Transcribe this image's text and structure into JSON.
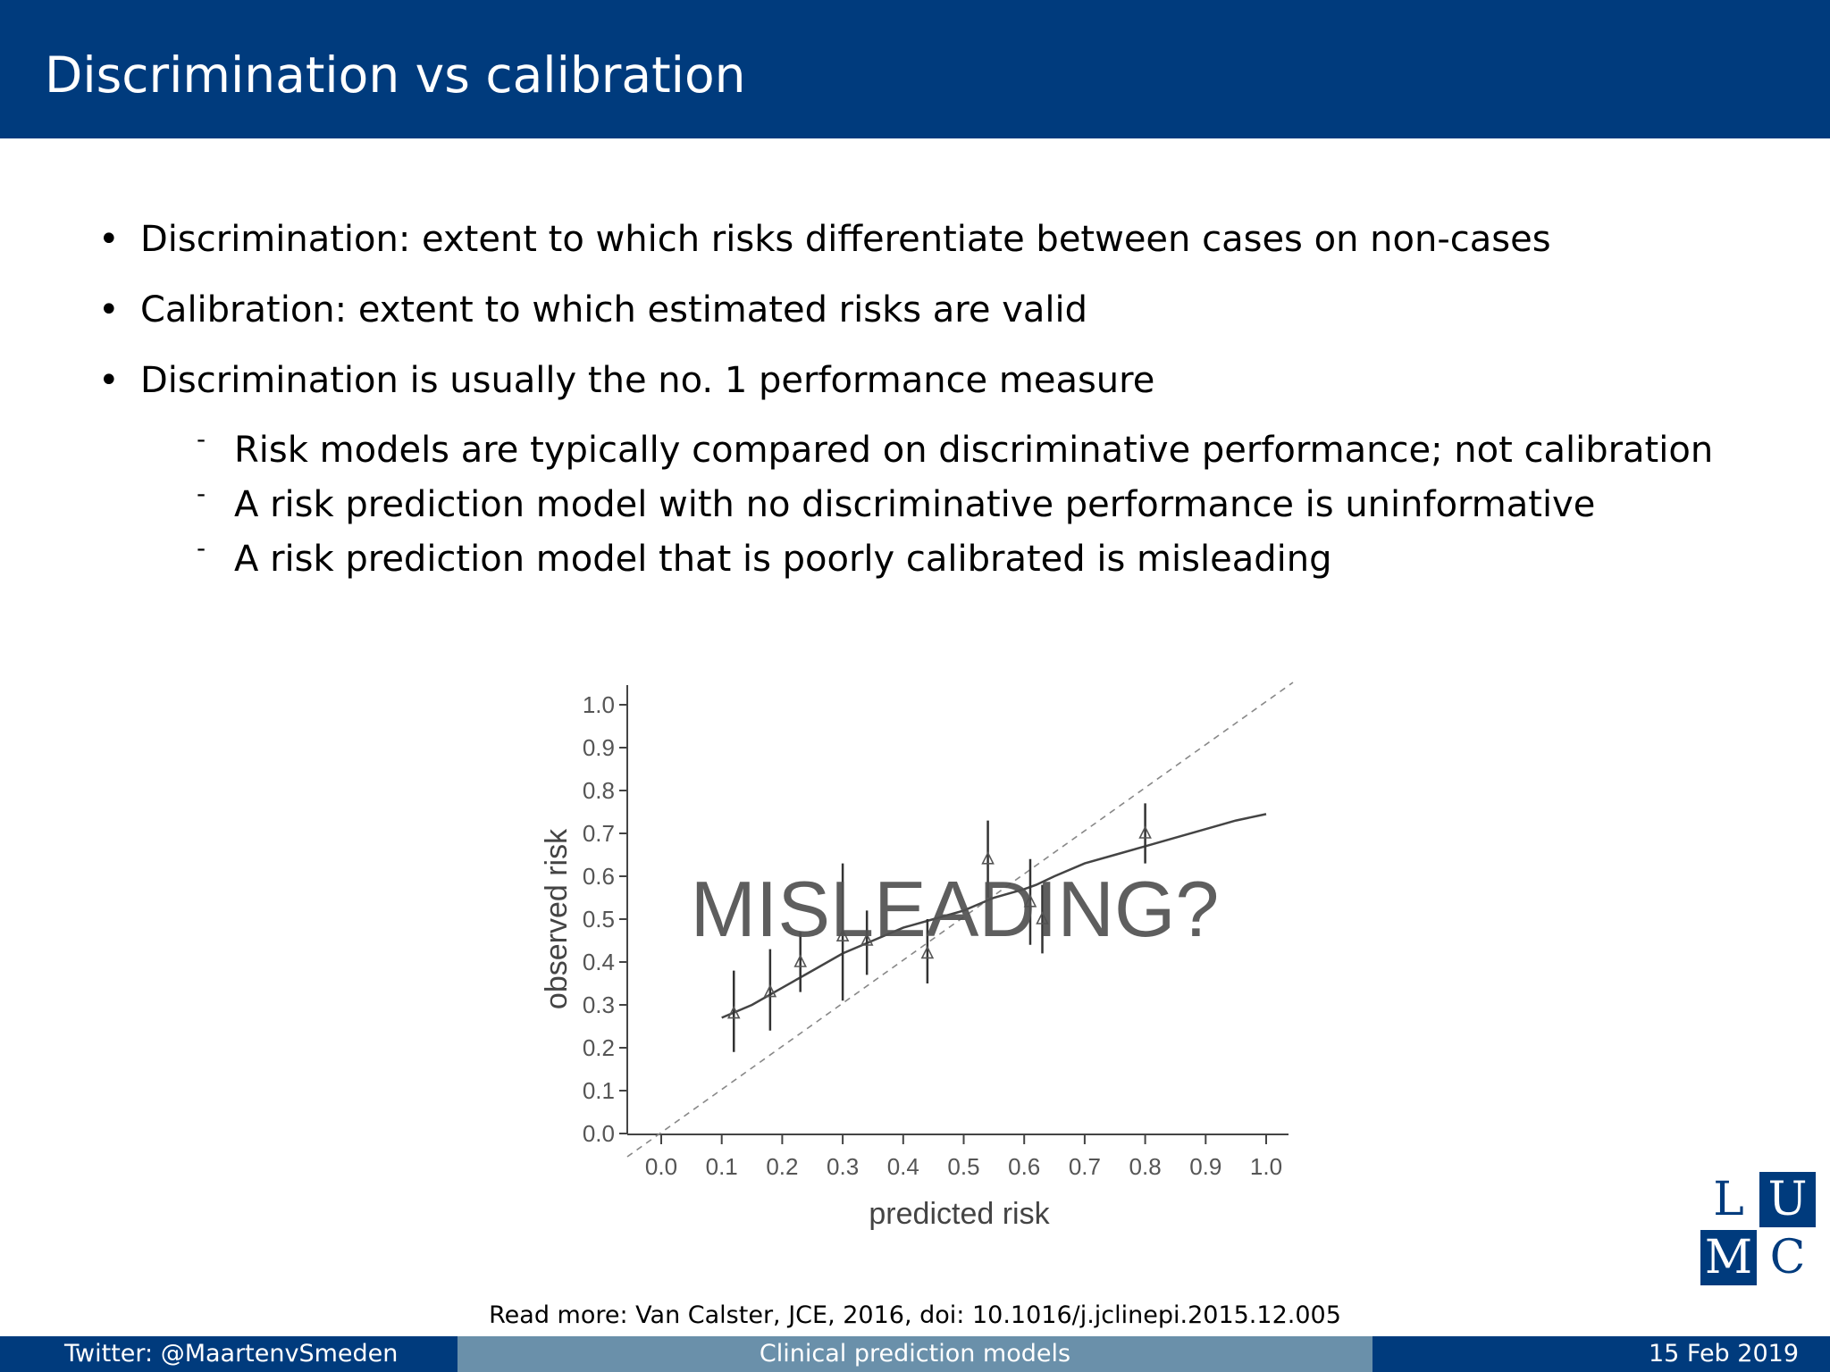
{
  "slide": {
    "title": "Discrimination vs calibration",
    "bullets": [
      "Discrimination: extent to which risks differentiate between cases on non-cases",
      "Calibration: extent to which estimated risks are valid",
      "Discrimination is usually the no. 1 performance measure"
    ],
    "sub_bullets": [
      "Risk models are typically compared on discriminative performance; not calibration",
      "A risk prediction model with no discriminative performance is uninformative",
      "A risk prediction model that is poorly calibrated is misleading"
    ],
    "bullet_symbol": "•",
    "sub_bullet_symbol": "-",
    "read_more": "Read more: Van Calster, JCE, 2016, doi: 10.1016/j.jclinepi.2015.12.005",
    "logo": {
      "letters": [
        "L",
        "U",
        "M",
        "C"
      ],
      "color": "#003b7d"
    }
  },
  "footer": {
    "left": "Twitter: @MaartenvSmeden",
    "center": "Clinical prediction models",
    "right": "15 Feb 2019",
    "colors": {
      "left": "#003b7d",
      "center": "#6a90aa",
      "right": "#003b7d"
    }
  },
  "colors": {
    "header": "#003b7d",
    "overlay_text": "#505050"
  },
  "chart_data": {
    "type": "scatter",
    "xlabel": "predicted risk",
    "ylabel": "observed risk",
    "x_ticks": [
      "0.0",
      "0.1",
      "0.2",
      "0.3",
      "0.4",
      "0.5",
      "0.6",
      "0.7",
      "0.8",
      "0.9",
      "1.0"
    ],
    "y_ticks": [
      "0.0",
      "0.1",
      "0.2",
      "0.3",
      "0.4",
      "0.5",
      "0.6",
      "0.7",
      "0.8",
      "0.9",
      "1.0"
    ],
    "xlim": [
      0,
      1
    ],
    "ylim": [
      0,
      1
    ],
    "overlay_text": "MISLEADING?",
    "reference_line": {
      "from": [
        0,
        0
      ],
      "to": [
        1,
        1
      ],
      "style": "dashed"
    },
    "points": [
      {
        "x": 0.12,
        "y": 0.28,
        "lo": 0.19,
        "hi": 0.38
      },
      {
        "x": 0.18,
        "y": 0.33,
        "lo": 0.24,
        "hi": 0.43
      },
      {
        "x": 0.23,
        "y": 0.4,
        "lo": 0.33,
        "hi": 0.47
      },
      {
        "x": 0.3,
        "y": 0.46,
        "lo": 0.31,
        "hi": 0.63
      },
      {
        "x": 0.34,
        "y": 0.45,
        "lo": 0.37,
        "hi": 0.52
      },
      {
        "x": 0.44,
        "y": 0.42,
        "lo": 0.35,
        "hi": 0.5
      },
      {
        "x": 0.54,
        "y": 0.64,
        "lo": 0.55,
        "hi": 0.73
      },
      {
        "x": 0.61,
        "y": 0.54,
        "lo": 0.44,
        "hi": 0.64
      },
      {
        "x": 0.63,
        "y": 0.5,
        "lo": 0.42,
        "hi": 0.58
      },
      {
        "x": 0.8,
        "y": 0.7,
        "lo": 0.63,
        "hi": 0.77
      }
    ],
    "curve": [
      [
        0.1,
        0.27
      ],
      [
        0.15,
        0.3
      ],
      [
        0.2,
        0.34
      ],
      [
        0.25,
        0.38
      ],
      [
        0.3,
        0.42
      ],
      [
        0.35,
        0.45
      ],
      [
        0.4,
        0.48
      ],
      [
        0.45,
        0.5
      ],
      [
        0.5,
        0.52
      ],
      [
        0.55,
        0.55
      ],
      [
        0.6,
        0.57
      ],
      [
        0.62,
        0.58
      ],
      [
        0.65,
        0.6
      ],
      [
        0.7,
        0.63
      ],
      [
        0.75,
        0.65
      ],
      [
        0.8,
        0.67
      ],
      [
        0.85,
        0.69
      ],
      [
        0.9,
        0.71
      ],
      [
        0.95,
        0.73
      ],
      [
        1.0,
        0.745
      ]
    ]
  }
}
